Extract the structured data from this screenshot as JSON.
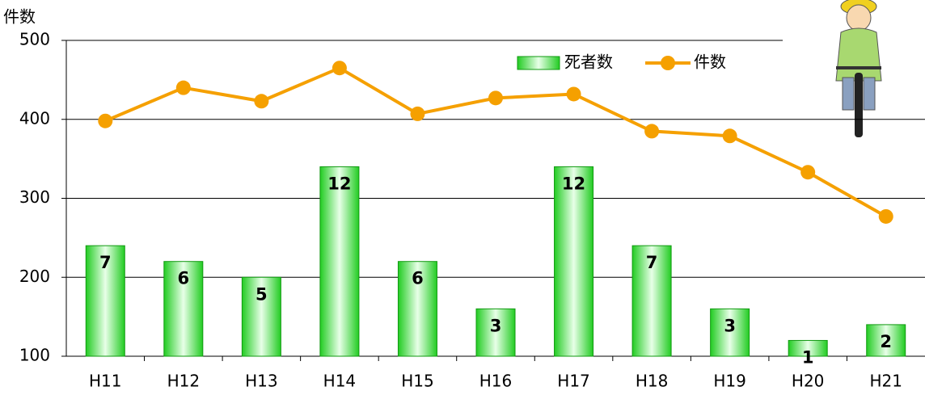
{
  "chart_data": {
    "type": "combo",
    "y_axis_label": "件数",
    "categories": [
      "H11",
      "H12",
      "H13",
      "H14",
      "H15",
      "H16",
      "H17",
      "H18",
      "H19",
      "H20",
      "H21"
    ],
    "series": [
      {
        "name": "死者数",
        "type": "bar",
        "axis": "y2",
        "color": "#33dd33",
        "values": [
          7,
          6,
          5,
          12,
          6,
          3,
          12,
          7,
          3,
          1,
          2
        ]
      },
      {
        "name": "件数",
        "type": "line",
        "color": "#f5a000",
        "values": [
          398,
          440,
          423,
          465,
          407,
          427,
          432,
          385,
          379,
          333,
          277
        ]
      }
    ],
    "ylim": [
      100,
      500
    ],
    "yticks": [
      100,
      200,
      300,
      400,
      500
    ],
    "y2lim": [
      0,
      20
    ],
    "grid": true,
    "legend": "top-right"
  }
}
